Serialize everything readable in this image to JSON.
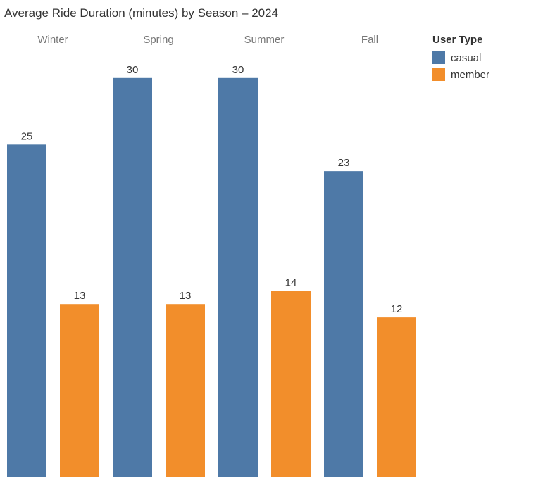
{
  "title": "Average Ride Duration (minutes) by Season – 2024",
  "legend": {
    "title": "User Type",
    "items": [
      {
        "label": "casual",
        "color": "#4E79A7"
      },
      {
        "label": "member",
        "color": "#F28E2B"
      }
    ]
  },
  "chart_data": {
    "type": "bar",
    "title": "Average Ride Duration (minutes) by Season – 2024",
    "categories": [
      "Winter",
      "Spring",
      "Summer",
      "Fall"
    ],
    "series": [
      {
        "name": "casual",
        "color": "#4E79A7",
        "values": [
          25,
          30,
          30,
          23
        ],
        "labels": [
          "25",
          "30",
          "30",
          "23"
        ]
      },
      {
        "name": "member",
        "color": "#F28E2B",
        "values": [
          13,
          13,
          14,
          12
        ],
        "labels": [
          "13",
          "13",
          "14",
          "12"
        ]
      }
    ],
    "xlabel": "",
    "ylabel": "",
    "ylim": [
      0,
      31.1
    ],
    "grid": false,
    "legend_position": "top-right",
    "category_labels_position": "top"
  }
}
